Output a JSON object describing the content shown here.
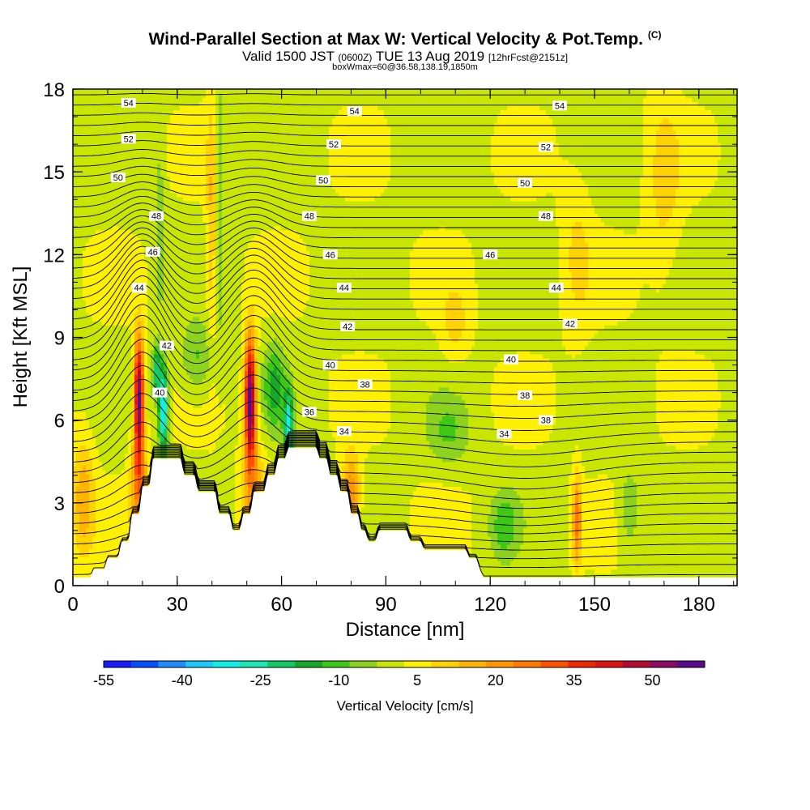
{
  "figure": {
    "title": "Wind-Parallel Section at Max W: Vertical Velocity & Pot.Temp.",
    "title_mark": "(C)",
    "subtitle_main": "Valid 1500 JST",
    "subtitle_zulu": "(0600Z)",
    "subtitle_date": "TUE 13 Aug 2019",
    "subtitle_fcst": "[12hrFcst@2151z]",
    "subline": "boxWmax=60@36.58,138.19,1850m"
  },
  "chart_data": {
    "type": "heatmap",
    "title": "Wind-Parallel Section at Max W: Vertical Velocity & Pot.Temp.",
    "xlabel": "Distance [nm]",
    "ylabel": "Height [Kft MSL]",
    "xlim": [
      0,
      191
    ],
    "ylim": [
      0,
      18
    ],
    "x_ticks": [
      "0",
      "30",
      "60",
      "90",
      "120",
      "150",
      "180"
    ],
    "y_ticks": [
      "0",
      "3",
      "6",
      "9",
      "12",
      "15",
      "18"
    ],
    "colorbar": {
      "label": "Vertical Velocity [cm/s]",
      "tick_labels": [
        "-55",
        "-40",
        "-25",
        "-10",
        "5",
        "20",
        "35",
        "50"
      ],
      "tick_values": [
        -55,
        -40,
        -25,
        -10,
        5,
        20,
        35,
        50
      ],
      "range": [
        -55,
        60
      ],
      "colors": [
        "#1a1aff",
        "#0050ff",
        "#1e8cff",
        "#1ec8ff",
        "#10f0e6",
        "#1ee6b4",
        "#14c864",
        "#14aa28",
        "#3cc814",
        "#8cd21e",
        "#c8e600",
        "#fff000",
        "#ffd200",
        "#ffb400",
        "#ff9600",
        "#ff7800",
        "#ff5000",
        "#f02800",
        "#dc1414",
        "#b40a32",
        "#8c0a64",
        "#5a0a8c"
      ]
    },
    "terrain_kft": [
      [
        0,
        0.3
      ],
      [
        5,
        0.3
      ],
      [
        6,
        0.6
      ],
      [
        9,
        0.6
      ],
      [
        10,
        1.0
      ],
      [
        13,
        1.0
      ],
      [
        14,
        1.6
      ],
      [
        16,
        1.6
      ],
      [
        17,
        2.6
      ],
      [
        19,
        2.6
      ],
      [
        20,
        3.6
      ],
      [
        22,
        3.6
      ],
      [
        23,
        4.6
      ],
      [
        31,
        4.6
      ],
      [
        32,
        4.0
      ],
      [
        35,
        4.0
      ],
      [
        36,
        3.4
      ],
      [
        41,
        3.4
      ],
      [
        42,
        2.6
      ],
      [
        45,
        2.6
      ],
      [
        46,
        2.0
      ],
      [
        48,
        2.0
      ],
      [
        49,
        2.6
      ],
      [
        51,
        2.6
      ],
      [
        52,
        3.4
      ],
      [
        55,
        3.4
      ],
      [
        56,
        4.0
      ],
      [
        58,
        4.0
      ],
      [
        59,
        4.6
      ],
      [
        61,
        4.6
      ],
      [
        62,
        5.0
      ],
      [
        70,
        5.0
      ],
      [
        71,
        4.6
      ],
      [
        73,
        4.6
      ],
      [
        74,
        4.0
      ],
      [
        76,
        4.0
      ],
      [
        77,
        3.4
      ],
      [
        79,
        3.4
      ],
      [
        80,
        2.6
      ],
      [
        82,
        2.6
      ],
      [
        83,
        2.0
      ],
      [
        84,
        2.0
      ],
      [
        85,
        1.6
      ],
      [
        87,
        1.6
      ],
      [
        88,
        2.0
      ],
      [
        96,
        2.0
      ],
      [
        97,
        1.6
      ],
      [
        100,
        1.6
      ],
      [
        101,
        1.3
      ],
      [
        113,
        1.3
      ],
      [
        114,
        1.0
      ],
      [
        116,
        1.0
      ],
      [
        117,
        0.6
      ],
      [
        118,
        0.3
      ],
      [
        191,
        0.3
      ]
    ],
    "w_features": [
      {
        "x": 19,
        "z": 6.8,
        "sx": 1.4,
        "sz": 2.2,
        "w": 55
      },
      {
        "x": 19,
        "z": 3.6,
        "sx": 2.4,
        "sz": 1.8,
        "w": 22
      },
      {
        "x": 26,
        "z": 6.4,
        "sx": 1.3,
        "sz": 1.6,
        "w": -38
      },
      {
        "x": 24,
        "z": 7.8,
        "sx": 1.2,
        "sz": 0.9,
        "w": -24
      },
      {
        "x": 51,
        "z": 6.7,
        "sx": 1.6,
        "sz": 2.3,
        "w": 58
      },
      {
        "x": 52,
        "z": 3.4,
        "sx": 3.6,
        "sz": 1.8,
        "w": 14
      },
      {
        "x": 62,
        "z": 5.7,
        "sx": 1.3,
        "sz": 1.3,
        "w": -32
      },
      {
        "x": 58,
        "z": 7.2,
        "sx": 3.0,
        "sz": 1.5,
        "w": -16
      },
      {
        "x": 36,
        "z": 8.2,
        "sx": 5.0,
        "sz": 1.3,
        "w": -11
      },
      {
        "x": 80,
        "z": 3.3,
        "sx": 2.6,
        "sz": 1.5,
        "w": 22
      },
      {
        "x": 145,
        "z": 2.4,
        "sx": 1.3,
        "sz": 1.6,
        "w": 24
      },
      {
        "x": 3,
        "z": 3.2,
        "sx": 3.2,
        "sz": 2.2,
        "w": 15
      },
      {
        "x": 124,
        "z": 2.2,
        "sx": 4.0,
        "sz": 1.2,
        "w": -12
      },
      {
        "x": 160,
        "z": 2.8,
        "sx": 3.0,
        "sz": 1.4,
        "w": -10
      },
      {
        "x": 108,
        "z": 5.6,
        "sx": 6.0,
        "sz": 1.2,
        "w": -9
      },
      {
        "x": 40,
        "z": 13.0,
        "sx": 1.6,
        "sz": 4.5,
        "w": 12
      },
      {
        "x": 42,
        "z": 14.0,
        "sx": 1.2,
        "sz": 4.5,
        "w": -11
      },
      {
        "x": 25,
        "z": 13.0,
        "sx": 1.4,
        "sz": 3.0,
        "w": -9
      },
      {
        "x": 110,
        "z": 9.5,
        "sx": 4.0,
        "sz": 1.4,
        "w": 8
      },
      {
        "x": 145,
        "z": 12.0,
        "sx": 4.5,
        "sz": 3.0,
        "w": 7
      },
      {
        "x": 170,
        "z": 14.5,
        "sx": 5.0,
        "sz": 3.5,
        "w": 8
      }
    ],
    "theta_labels": [
      {
        "value": "54",
        "points": [
          [
            16,
            17.5
          ],
          [
            81,
            17.2
          ],
          [
            140,
            17.4
          ]
        ]
      },
      {
        "value": "52",
        "points": [
          [
            16,
            16.2
          ],
          [
            75,
            16.0
          ],
          [
            136,
            15.9
          ]
        ]
      },
      {
        "value": "50",
        "points": [
          [
            13,
            14.8
          ],
          [
            72,
            14.7
          ],
          [
            130,
            14.6
          ]
        ]
      },
      {
        "value": "48",
        "points": [
          [
            24,
            13.4
          ],
          [
            68,
            13.4
          ],
          [
            136,
            13.4
          ]
        ]
      },
      {
        "value": "46",
        "points": [
          [
            23,
            12.1
          ],
          [
            74,
            12.0
          ],
          [
            120,
            12.0
          ]
        ]
      },
      {
        "value": "44",
        "points": [
          [
            19,
            10.8
          ],
          [
            78,
            10.8
          ],
          [
            139,
            10.8
          ]
        ]
      },
      {
        "value": "42",
        "points": [
          [
            27,
            8.7
          ],
          [
            79,
            9.4
          ],
          [
            143,
            9.5
          ]
        ]
      },
      {
        "value": "40",
        "points": [
          [
            25,
            7.0
          ],
          [
            74,
            8.0
          ],
          [
            126,
            8.2
          ]
        ]
      },
      {
        "value": "38",
        "points": [
          [
            84,
            7.3
          ],
          [
            130,
            6.9
          ],
          [
            136,
            6.0
          ]
        ]
      },
      {
        "value": "36",
        "points": [
          [
            68,
            6.3
          ]
        ]
      },
      {
        "value": "34",
        "points": [
          [
            78,
            5.6
          ],
          [
            124,
            5.5
          ]
        ]
      }
    ]
  }
}
